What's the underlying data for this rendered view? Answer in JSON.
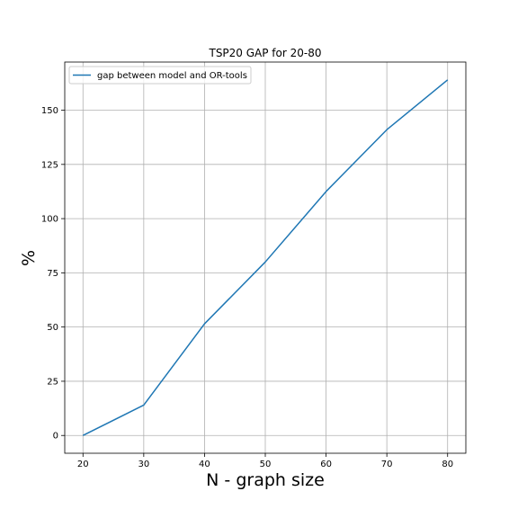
{
  "chart_data": {
    "type": "line",
    "title": "TSP20 GAP for 20-80",
    "xlabel": "N - graph size",
    "ylabel": "%",
    "x": [
      20,
      30,
      40,
      50,
      60,
      70,
      80
    ],
    "series": [
      {
        "name": "gap between model and OR-tools",
        "color": "#1f77b4",
        "values": [
          0,
          14,
          51.5,
          80,
          112.5,
          141,
          164
        ]
      }
    ],
    "xticks": [
      20,
      30,
      40,
      50,
      60,
      70,
      80
    ],
    "yticks": [
      0,
      25,
      50,
      75,
      100,
      125,
      150
    ],
    "xlim": [
      17,
      83
    ],
    "ylim": [
      -8.2,
      172.2
    ],
    "grid": true,
    "legend_position": "top-left"
  }
}
